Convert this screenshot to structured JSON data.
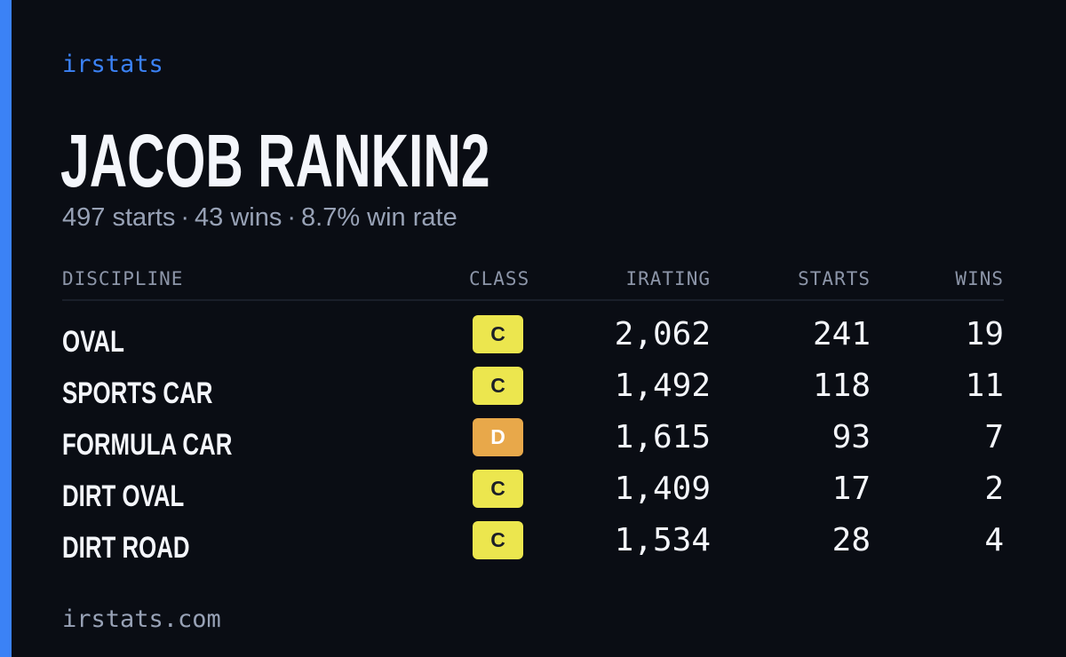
{
  "brand": "irstats",
  "driver": {
    "name": "JACOB RANKIN2",
    "starts_text": "497 starts",
    "wins_text": "43 wins",
    "win_rate_text": "8.7% win rate",
    "separator": "·"
  },
  "table": {
    "headers": {
      "discipline": "DISCIPLINE",
      "class": "CLASS",
      "irating": "IRATING",
      "starts": "STARTS",
      "wins": "WINS"
    },
    "rows": [
      {
        "discipline": "OVAL",
        "class": "C",
        "class_color": "#ece64e",
        "irating": "2,062",
        "starts": "241",
        "wins": "19"
      },
      {
        "discipline": "SPORTS CAR",
        "class": "C",
        "class_color": "#ece64e",
        "irating": "1,492",
        "starts": "118",
        "wins": "11"
      },
      {
        "discipline": "FORMULA CAR",
        "class": "D",
        "class_color": "#e8a84a",
        "irating": "1,615",
        "starts": "93",
        "wins": "7"
      },
      {
        "discipline": "DIRT OVAL",
        "class": "C",
        "class_color": "#ece64e",
        "irating": "1,409",
        "starts": "17",
        "wins": "2"
      },
      {
        "discipline": "DIRT ROAD",
        "class": "C",
        "class_color": "#ece64e",
        "irating": "1,534",
        "starts": "28",
        "wins": "4"
      }
    ]
  },
  "footer": "irstats.com",
  "colors": {
    "accent": "#3b82f6",
    "background": "#0a0d14",
    "class_d_text": "#ffffff",
    "class_c_text": "#1c1f27"
  }
}
